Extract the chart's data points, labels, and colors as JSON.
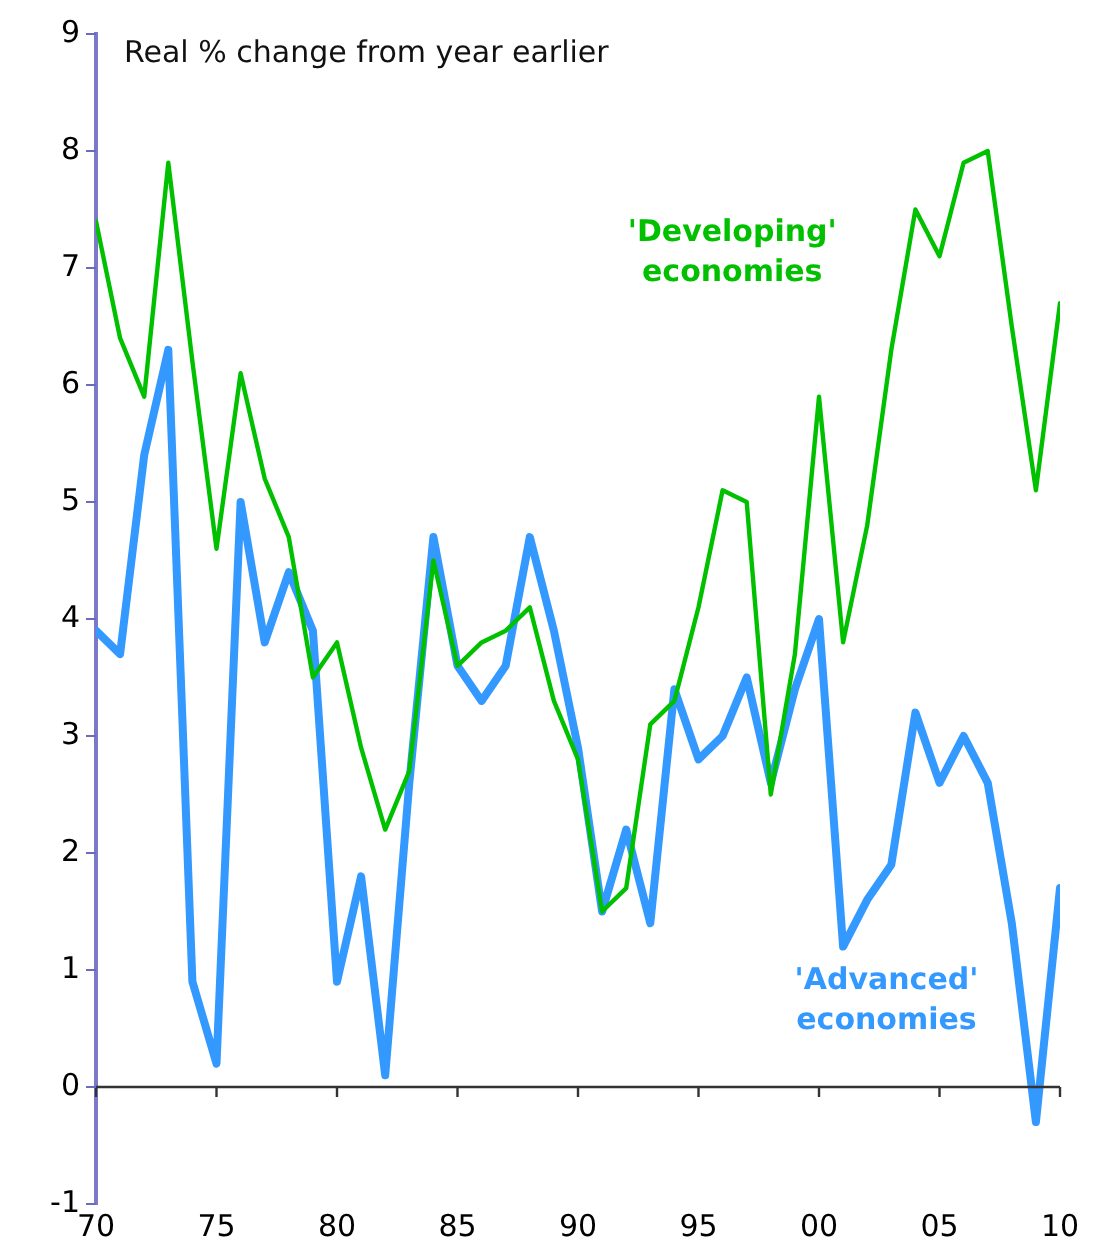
{
  "chart_data": {
    "type": "line",
    "title": "Real % change from year earlier",
    "x": [
      1970,
      1971,
      1972,
      1973,
      1974,
      1975,
      1976,
      1977,
      1978,
      1979,
      1980,
      1981,
      1982,
      1983,
      1984,
      1985,
      1986,
      1987,
      1988,
      1989,
      1990,
      1991,
      1992,
      1993,
      1994,
      1995,
      1996,
      1997,
      1998,
      1999,
      2000,
      2001,
      2002,
      2003,
      2004,
      2005,
      2006,
      2007,
      2008,
      2009,
      2010
    ],
    "series": [
      {
        "name": "'Developing' economies",
        "color": "#00c000",
        "values": [
          7.4,
          6.4,
          5.9,
          7.9,
          6.2,
          4.6,
          6.1,
          5.2,
          4.7,
          3.5,
          3.8,
          2.9,
          2.2,
          2.7,
          4.5,
          3.6,
          3.8,
          3.9,
          4.1,
          3.3,
          2.8,
          1.5,
          1.7,
          3.1,
          3.3,
          4.1,
          5.1,
          5.0,
          2.5,
          3.7,
          5.9,
          3.8,
          4.8,
          6.3,
          7.5,
          7.1,
          7.9,
          8.0,
          6.5,
          5.1,
          6.7
        ]
      },
      {
        "name": "'Advanced' economies",
        "color": "#3399ff",
        "values": [
          3.9,
          3.7,
          5.4,
          6.3,
          0.9,
          0.2,
          5.0,
          3.8,
          4.4,
          3.9,
          0.9,
          1.8,
          0.1,
          2.6,
          4.7,
          3.6,
          3.3,
          3.6,
          4.7,
          3.9,
          2.9,
          1.5,
          2.2,
          1.4,
          3.4,
          2.8,
          3.0,
          3.5,
          2.6,
          3.4,
          4.0,
          1.2,
          1.6,
          1.9,
          3.2,
          2.6,
          3.0,
          2.6,
          1.4,
          -0.3,
          1.7
        ]
      }
    ],
    "xlim": [
      1970,
      2010
    ],
    "xticks": [
      {
        "value": 1970,
        "label": "70"
      },
      {
        "value": 1975,
        "label": "75"
      },
      {
        "value": 1980,
        "label": "80"
      },
      {
        "value": 1985,
        "label": "85"
      },
      {
        "value": 1990,
        "label": "90"
      },
      {
        "value": 1995,
        "label": "95"
      },
      {
        "value": 2000,
        "label": "00"
      },
      {
        "value": 2005,
        "label": "05"
      },
      {
        "value": 2010,
        "label": "10"
      }
    ],
    "ylim": [
      -1,
      9
    ],
    "yticks": [
      -1,
      0,
      1,
      2,
      3,
      4,
      5,
      6,
      7,
      8,
      9
    ],
    "ref_lines": [
      {
        "axis": "y",
        "value": 0,
        "color": "#333333"
      }
    ],
    "grid": false,
    "legend": false,
    "marker": "none",
    "line_style": "solid"
  }
}
